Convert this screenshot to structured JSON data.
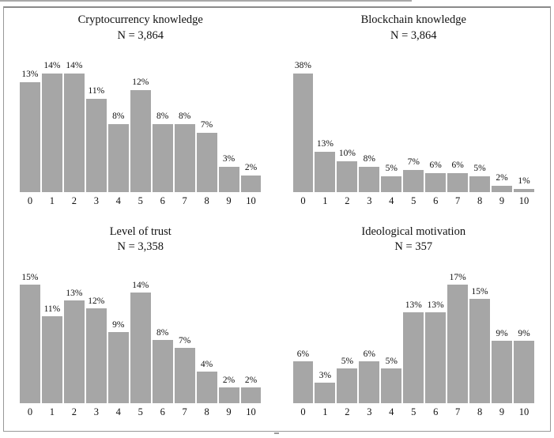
{
  "colors": {
    "bar": "#a6a6a6",
    "frame_border": "#999999",
    "text": "#111111"
  },
  "chart_data": [
    {
      "type": "bar",
      "title": "Cryptocurrency knowledge",
      "subtitle": "N = 3,864",
      "categories": [
        "0",
        "1",
        "2",
        "3",
        "4",
        "5",
        "6",
        "7",
        "8",
        "9",
        "10"
      ],
      "values": [
        13,
        14,
        14,
        11,
        8,
        12,
        8,
        8,
        7,
        3,
        2
      ],
      "labels": [
        "13%",
        "14%",
        "14%",
        "11%",
        "8%",
        "12%",
        "8%",
        "8%",
        "7%",
        "3%",
        "2%"
      ],
      "xlabel": "",
      "ylabel": "",
      "ylim": [
        0,
        14
      ],
      "grid": false,
      "legend": "none"
    },
    {
      "type": "bar",
      "title": "Blockchain knowledge",
      "subtitle": "N = 3,864",
      "categories": [
        "0",
        "1",
        "2",
        "3",
        "4",
        "5",
        "6",
        "7",
        "8",
        "9",
        "10"
      ],
      "values": [
        38,
        13,
        10,
        8,
        5,
        7,
        6,
        6,
        5,
        2,
        1
      ],
      "labels": [
        "38%",
        "13%",
        "10%",
        "8%",
        "5%",
        "7%",
        "6%",
        "6%",
        "5%",
        "2%",
        "1%"
      ],
      "xlabel": "",
      "ylabel": "",
      "ylim": [
        0,
        38
      ],
      "grid": false,
      "legend": "none"
    },
    {
      "type": "bar",
      "title": "Level of trust",
      "subtitle": "N = 3,358",
      "categories": [
        "0",
        "1",
        "2",
        "3",
        "4",
        "5",
        "6",
        "7",
        "8",
        "9",
        "10"
      ],
      "values": [
        15,
        11,
        13,
        12,
        9,
        14,
        8,
        7,
        4,
        2,
        2
      ],
      "labels": [
        "15%",
        "11%",
        "13%",
        "12%",
        "9%",
        "14%",
        "8%",
        "7%",
        "4%",
        "2%",
        "2%"
      ],
      "xlabel": "",
      "ylabel": "",
      "ylim": [
        0,
        15
      ],
      "grid": false,
      "legend": "none"
    },
    {
      "type": "bar",
      "title": "Ideological motivation",
      "subtitle": "N = 357",
      "categories": [
        "0",
        "1",
        "2",
        "3",
        "4",
        "5",
        "6",
        "7",
        "8",
        "9",
        "10"
      ],
      "values": [
        6,
        3,
        5,
        6,
        5,
        13,
        13,
        17,
        15,
        9,
        9
      ],
      "labels": [
        "6%",
        "3%",
        "5%",
        "6%",
        "5%",
        "13%",
        "13%",
        "17%",
        "15%",
        "9%",
        "9%"
      ],
      "xlabel": "",
      "ylabel": "",
      "ylim": [
        0,
        17
      ],
      "grid": false,
      "legend": "none"
    }
  ]
}
